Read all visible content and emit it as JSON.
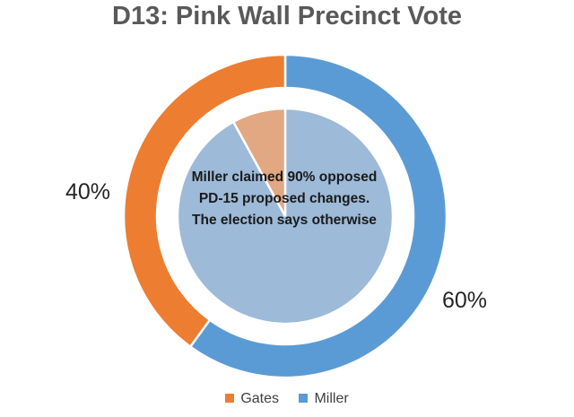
{
  "title": "D13: Pink Wall Precinct Vote",
  "chart_data": [
    {
      "type": "pie",
      "role": "outer-ring",
      "categories": [
        "Miller",
        "Gates"
      ],
      "values": [
        60,
        40
      ],
      "data_labels": [
        "60%",
        "40%"
      ],
      "colors": [
        "#5b9bd5",
        "#ed7d31"
      ],
      "start": "12 o'clock",
      "direction": "clockwise"
    },
    {
      "type": "pie",
      "role": "inner-pie",
      "categories": [
        "Miller",
        "Gates"
      ],
      "values": [
        92,
        8
      ],
      "colors": [
        "#9dbad8",
        "#e2a882"
      ],
      "start": "12 o'clock",
      "direction": "clockwise"
    }
  ],
  "annotation": "Miller claimed 90% opposed PD-15 proposed changes. The election says otherwise",
  "legend": {
    "position": "bottom",
    "items": [
      {
        "label": "Gates",
        "color": "#ed7d31"
      },
      {
        "label": "Miller",
        "color": "#5b9bd5"
      }
    ]
  }
}
